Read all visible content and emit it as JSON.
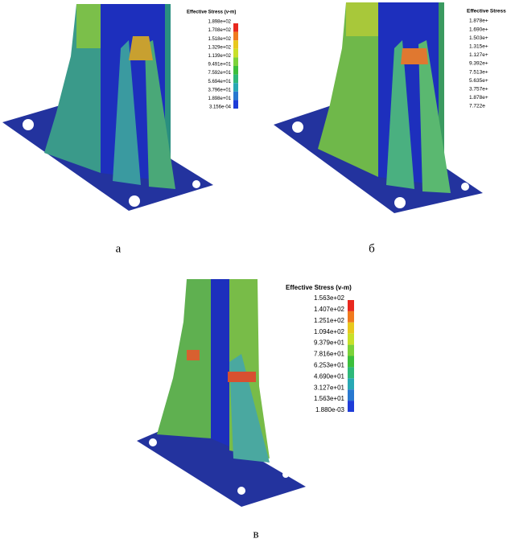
{
  "panels": [
    {
      "label": "а",
      "legend": {
        "title": "Effective Stress (v-m)",
        "values": [
          "1.898e+02",
          "1.708e+02",
          "1.518e+02",
          "1.329e+02",
          "1.139e+02",
          "9.491e+01",
          "7.592e+01",
          "5.694e+01",
          "3.796e+01",
          "1.898e+01",
          "3.156e-04"
        ]
      }
    },
    {
      "label": "б",
      "legend": {
        "title": "Effective Stress",
        "values": [
          "1.878e+",
          "1.690e+",
          "1.503e+",
          "1.315e+",
          "1.127e+",
          "9.392e+",
          "7.513e+",
          "5.635e+",
          "3.757e+",
          "1.878e+",
          "7.722e"
        ]
      }
    },
    {
      "label": "в",
      "legend": {
        "title": "Effective Stress (v-m)",
        "values": [
          "1.563e+02",
          "1.407e+02",
          "1.251e+02",
          "1.094e+02",
          "9.379e+01",
          "7.816e+01",
          "6.253e+01",
          "4.690e+01",
          "3.127e+01",
          "1.563e+01",
          "1.880e-03"
        ]
      }
    }
  ]
}
